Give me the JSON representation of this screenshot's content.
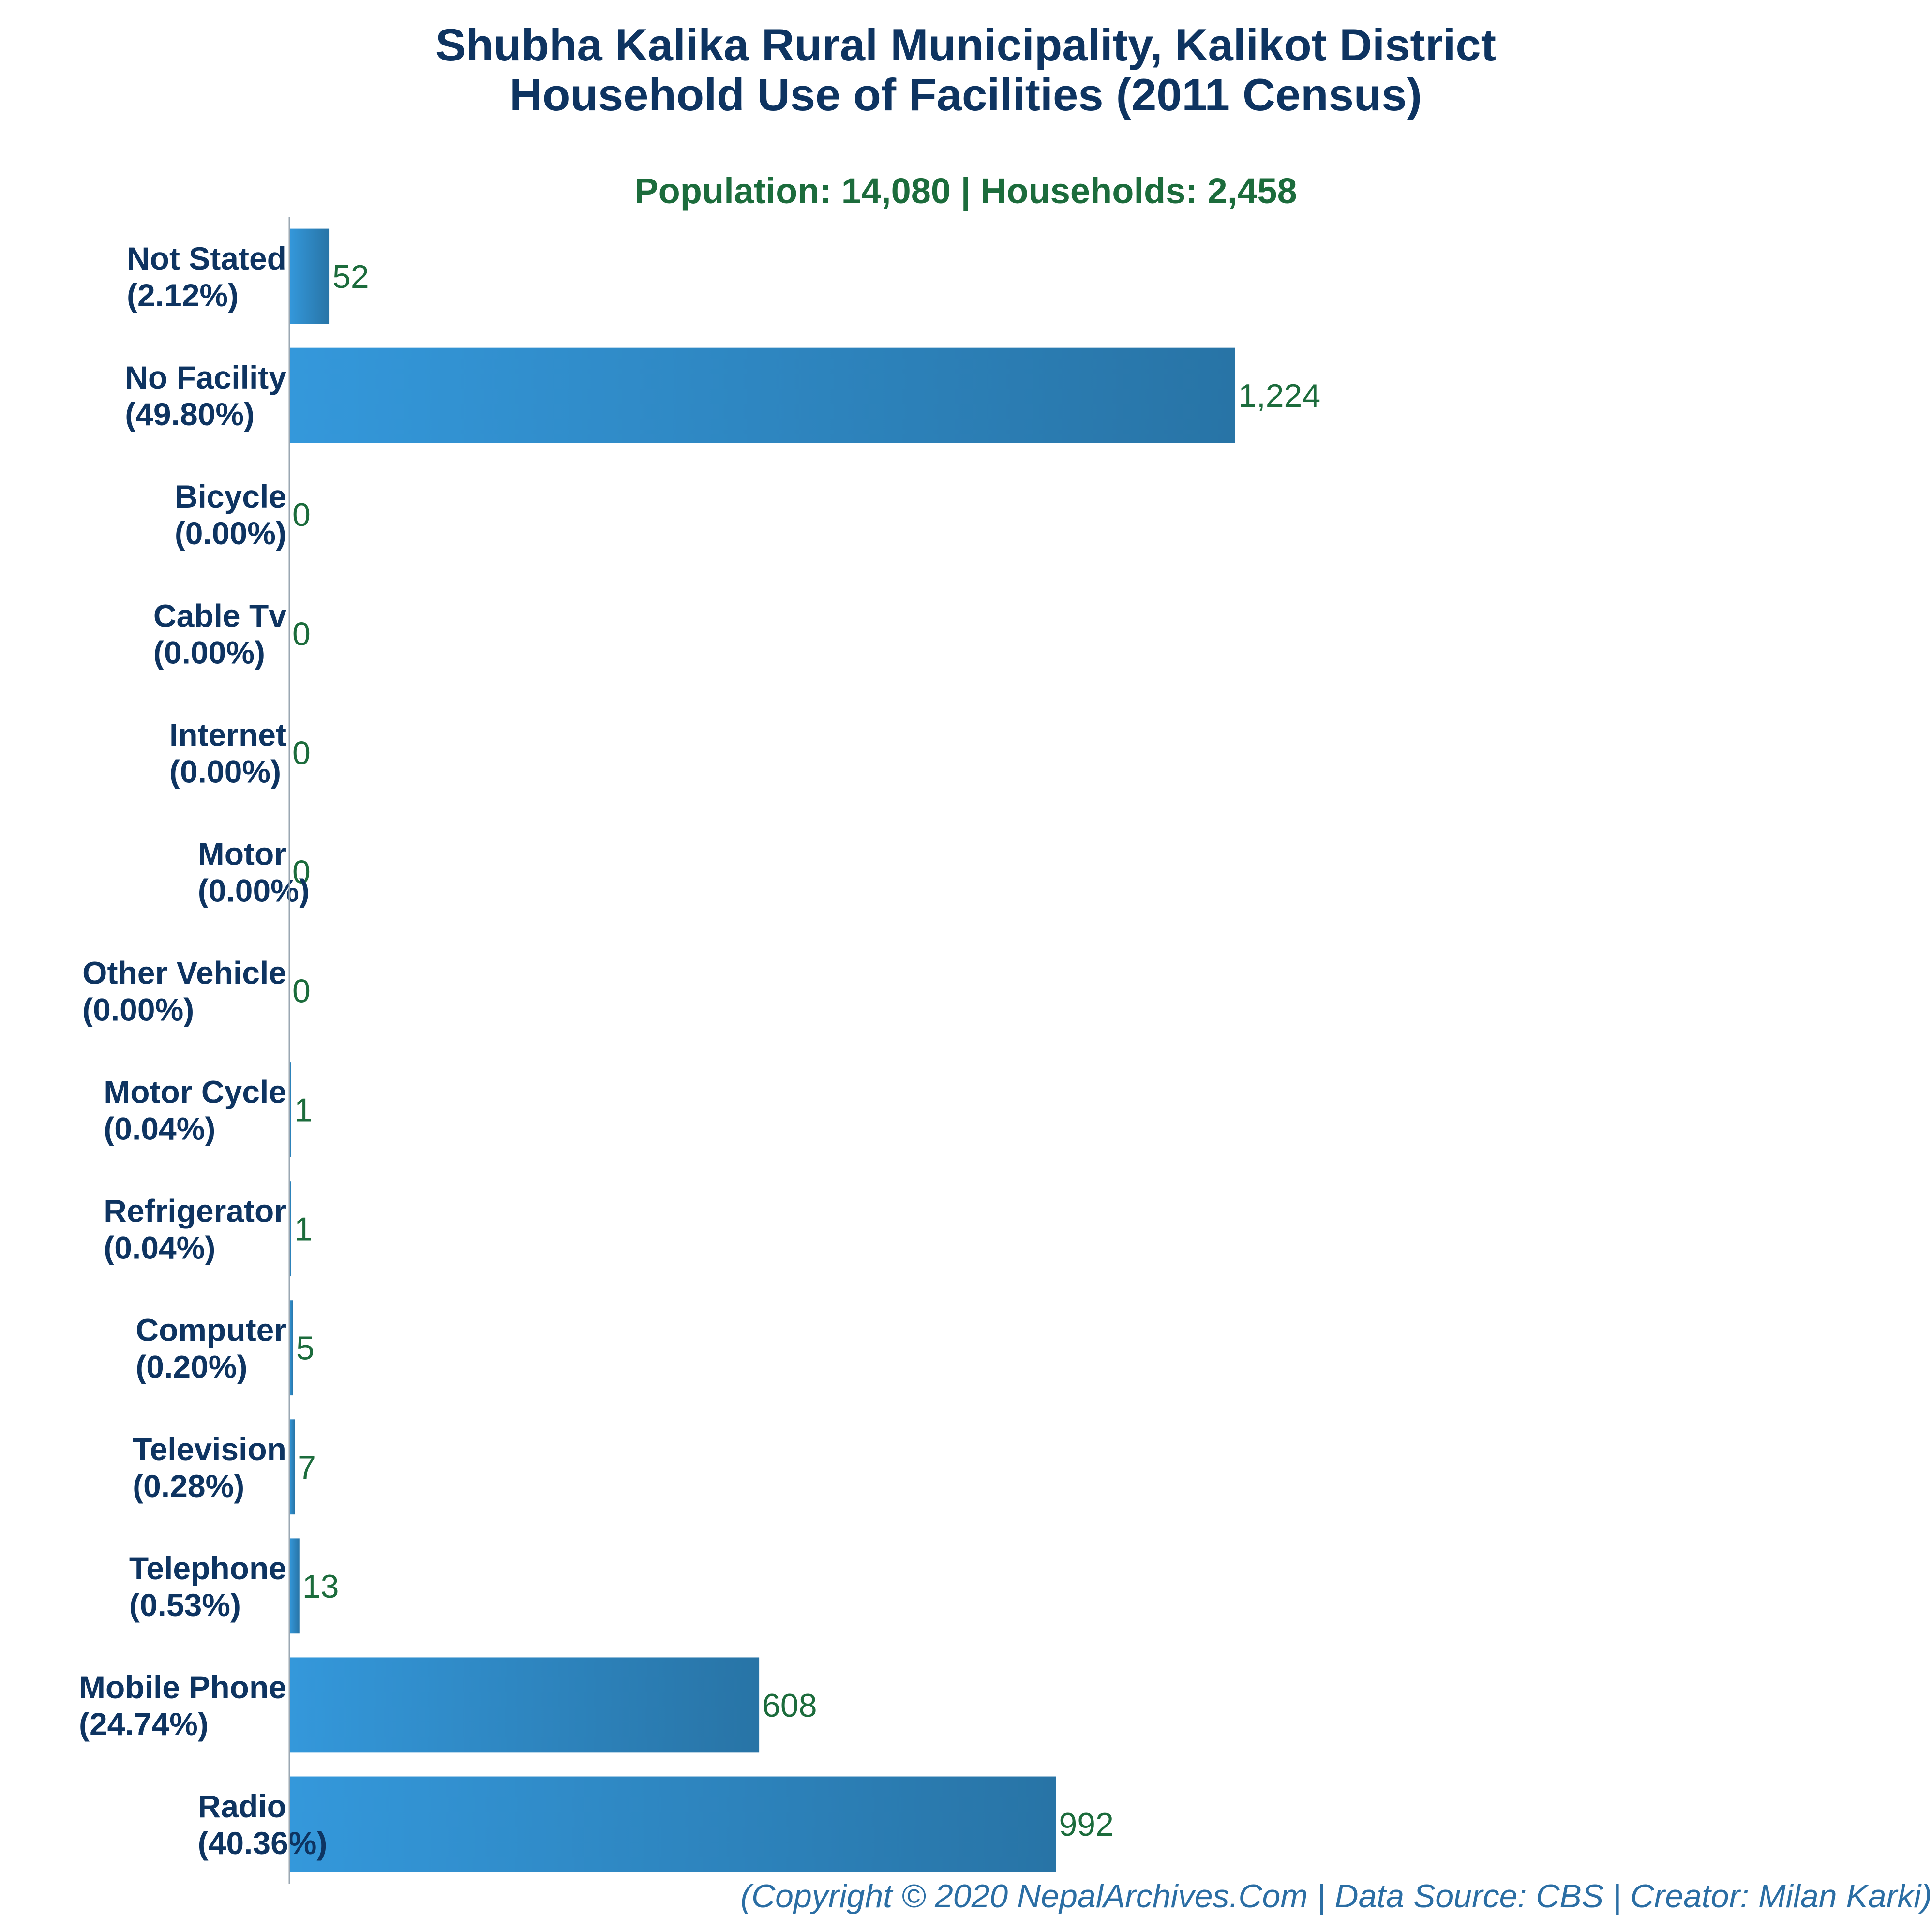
{
  "chart_data": {
    "type": "bar",
    "orientation": "horizontal",
    "title": [
      "Shubha Kalika Rural Municipality, Kalikot District",
      "Household Use of Facilities (2011 Census)"
    ],
    "subtitle": "Population: 14,080 | Households: 2,458",
    "categories": [
      {
        "name": "Not Stated",
        "pct": "(2.12%)",
        "label": "52",
        "value": 52
      },
      {
        "name": "No Facility",
        "pct": "(49.80%)",
        "label": "1,224",
        "value": 1224
      },
      {
        "name": "Bicycle",
        "pct": "(0.00%)",
        "label": "0",
        "value": 0
      },
      {
        "name": "Cable Tv",
        "pct": "(0.00%)",
        "label": "0",
        "value": 0
      },
      {
        "name": "Internet",
        "pct": "(0.00%)",
        "label": "0",
        "value": 0
      },
      {
        "name": "Motor",
        "pct": "(0.00%)",
        "label": "0",
        "value": 0
      },
      {
        "name": "Other Vehicle",
        "pct": "(0.00%)",
        "label": "0",
        "value": 0
      },
      {
        "name": "Motor Cycle",
        "pct": "(0.04%)",
        "label": "1",
        "value": 1
      },
      {
        "name": "Refrigerator",
        "pct": "(0.04%)",
        "label": "1",
        "value": 1
      },
      {
        "name": "Computer",
        "pct": "(0.20%)",
        "label": "5",
        "value": 5
      },
      {
        "name": "Television",
        "pct": "(0.28%)",
        "label": "7",
        "value": 7
      },
      {
        "name": "Telephone",
        "pct": "(0.53%)",
        "label": "13",
        "value": 13
      },
      {
        "name": "Mobile Phone",
        "pct": "(24.74%)",
        "label": "608",
        "value": 608
      },
      {
        "name": "Radio",
        "pct": "(40.36%)",
        "label": "992",
        "value": 992
      }
    ],
    "xlabel": "",
    "ylabel": "",
    "xlim": [
      0,
      2040
    ],
    "grid": false,
    "legend": "none",
    "colors": {
      "bar_start": "#3498db",
      "bar_end": "#2874a6",
      "title": "#0e3461",
      "subtitle": "#1c6c3c",
      "value_text": "#1c6c3c",
      "footer": "#2b6ea4",
      "axis": "#9aa7b2"
    }
  },
  "footer": "(Copyright © 2020 NepalArchives.Com | Data Source: CBS | Creator: Milan Karki)"
}
